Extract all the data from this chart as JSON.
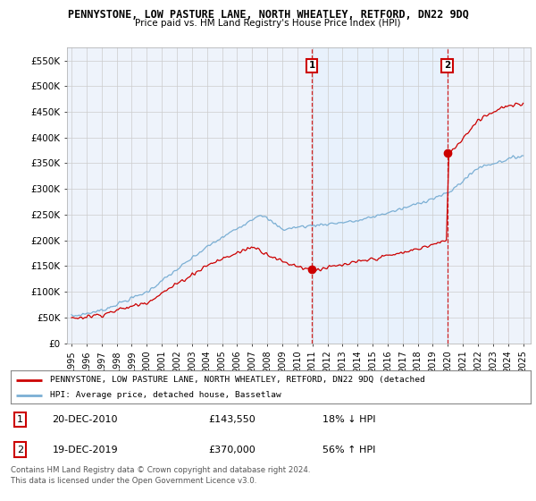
{
  "title": "PENNYSTONE, LOW PASTURE LANE, NORTH WHEATLEY, RETFORD, DN22 9DQ",
  "subtitle": "Price paid vs. HM Land Registry's House Price Index (HPI)",
  "ylim": [
    0,
    575000
  ],
  "yticks": [
    0,
    50000,
    100000,
    150000,
    200000,
    250000,
    300000,
    350000,
    400000,
    450000,
    500000,
    550000
  ],
  "ytick_labels": [
    "£0",
    "£50K",
    "£100K",
    "£150K",
    "£200K",
    "£250K",
    "£300K",
    "£350K",
    "£400K",
    "£450K",
    "£500K",
    "£550K"
  ],
  "xlim_start": 1994.7,
  "xlim_end": 2025.5,
  "sale1_x": 2010.96,
  "sale1_y": 143550,
  "sale1_label": "1",
  "sale2_x": 2019.96,
  "sale2_y": 370000,
  "sale2_label": "2",
  "legend_line1": "PENNYSTONE, LOW PASTURE LANE, NORTH WHEATLEY, RETFORD, DN22 9DQ (detached",
  "legend_line2": "HPI: Average price, detached house, Bassetlaw",
  "footer": "Contains HM Land Registry data © Crown copyright and database right 2024.\nThis data is licensed under the Open Government Licence v3.0.",
  "hpi_color": "#7bafd4",
  "price_color": "#cc0000",
  "vline_color": "#cc0000",
  "shade_color": "#ddeeff",
  "bg_color": "#eef3fb",
  "chart_bg": "#ffffff"
}
